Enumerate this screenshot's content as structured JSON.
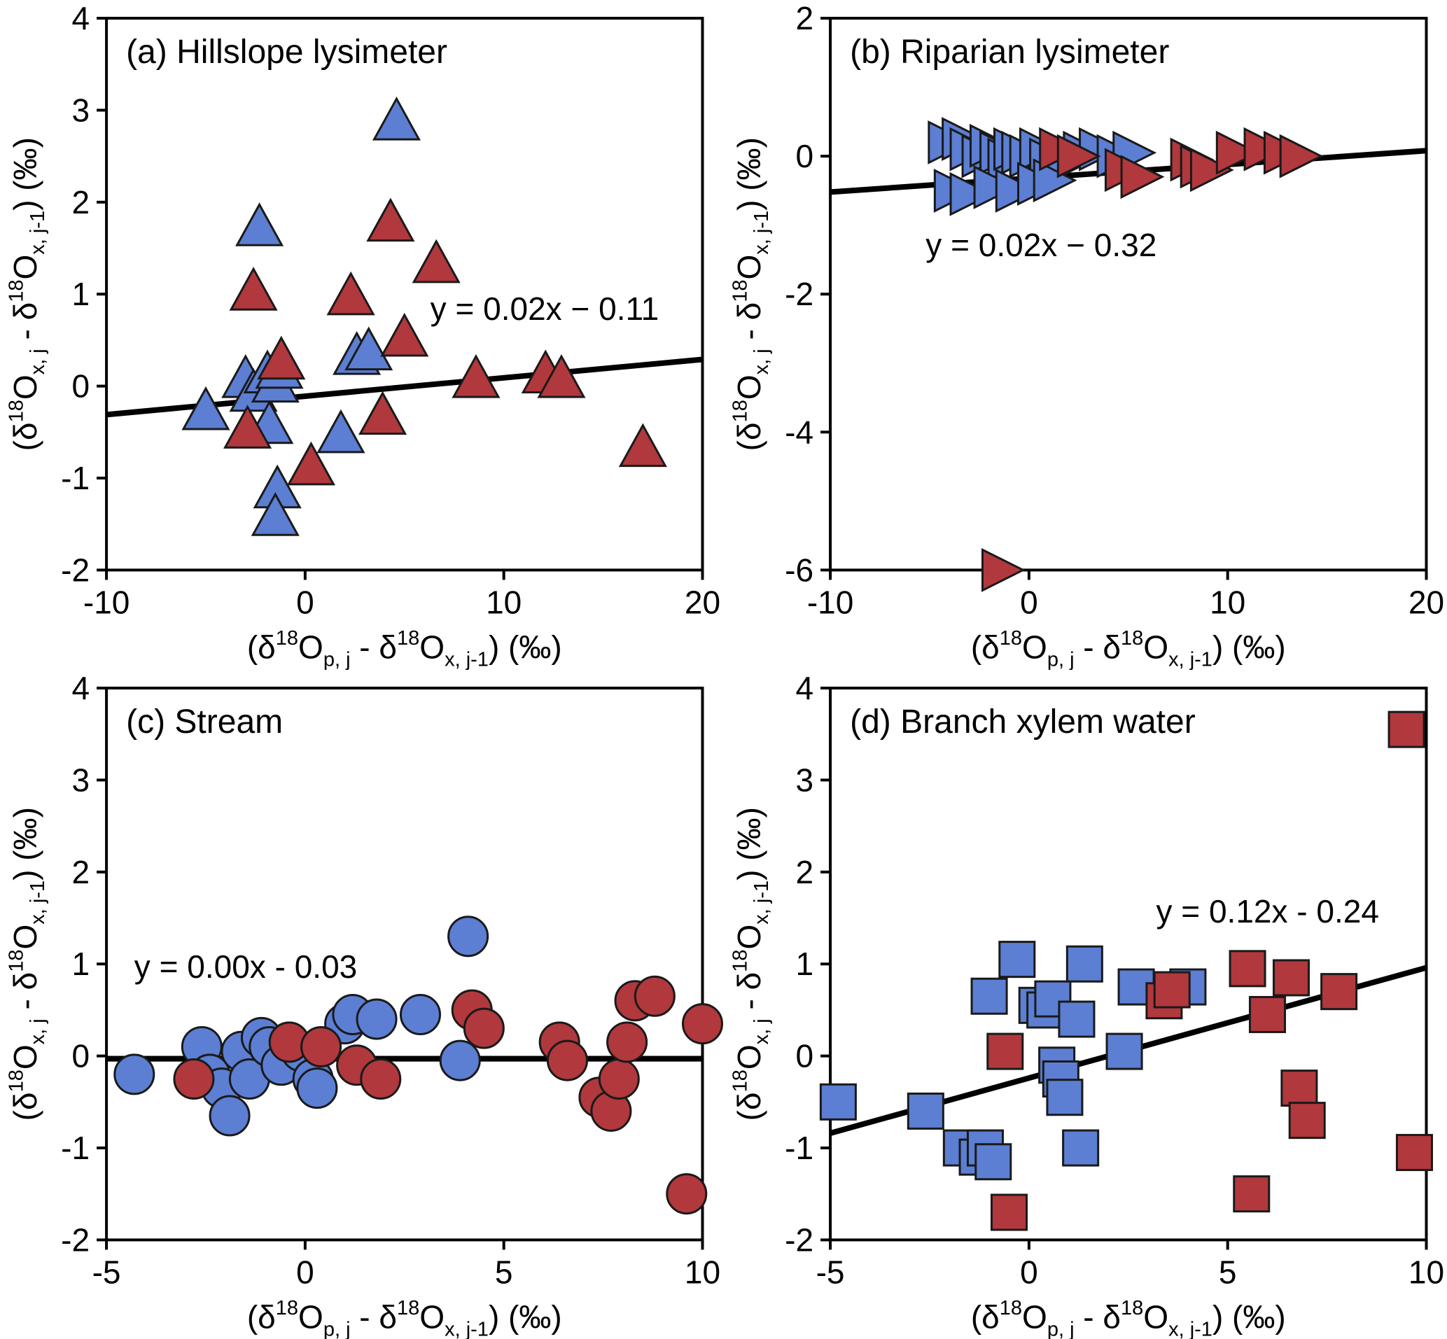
{
  "figure": {
    "background": "#ffffff",
    "marker_colors": {
      "blue": "#5c7fd3",
      "red": "#b1383d"
    },
    "edge_color": "#1a1a1a",
    "fit_line_color": "#000000",
    "xlabel": "(δ^{18}O_{p, j} - δ^{18}O_{x, j-1}) (‰)",
    "ylabel": "(δ^{18}O_{x, j} - δ^{18}O_{x, j-1}) (‰)",
    "grid": false,
    "legend": "none"
  },
  "chart_data": [
    {
      "id": "a",
      "type": "scatter",
      "title": "(a) Hillslope lysimeter",
      "marker": "triangle-up",
      "xlim": [
        -10,
        20
      ],
      "ylim": [
        -2,
        4
      ],
      "xticks": [
        -10,
        0,
        10,
        20
      ],
      "yticks": [
        -2,
        -1,
        0,
        1,
        2,
        3,
        4
      ],
      "equation": "y = 0.02x − 0.11",
      "equation_pos": [
        6.3,
        0.72
      ],
      "fit": {
        "slope": 0.02,
        "intercept": -0.11
      },
      "series": [
        {
          "name": "hillslope-blue",
          "color": "blue",
          "points": [
            [
              4.6,
              2.85
            ],
            [
              -2.3,
              1.7
            ],
            [
              2.6,
              0.3
            ],
            [
              3.2,
              0.35
            ],
            [
              -3.0,
              0.05
            ],
            [
              -2.6,
              -0.1
            ],
            [
              -1.9,
              0.1
            ],
            [
              -1.5,
              0.0
            ],
            [
              -1.3,
              0.15
            ],
            [
              -5.0,
              -0.3
            ],
            [
              -1.8,
              -0.45
            ],
            [
              1.8,
              -0.55
            ],
            [
              -1.4,
              -1.15
            ],
            [
              -1.5,
              -1.45
            ]
          ]
        },
        {
          "name": "hillslope-red",
          "color": "red",
          "points": [
            [
              4.3,
              1.75
            ],
            [
              6.6,
              1.3
            ],
            [
              -2.6,
              1.0
            ],
            [
              2.3,
              0.95
            ],
            [
              5.0,
              0.5
            ],
            [
              -1.2,
              0.25
            ],
            [
              8.6,
              0.05
            ],
            [
              12.1,
              0.1
            ],
            [
              12.9,
              0.05
            ],
            [
              3.9,
              -0.35
            ],
            [
              -2.9,
              -0.5
            ],
            [
              0.3,
              -0.9
            ],
            [
              17.0,
              -0.7
            ]
          ]
        }
      ]
    },
    {
      "id": "b",
      "type": "scatter",
      "title": "(b) Riparian lysimeter",
      "marker": "triangle-right",
      "xlim": [
        -10,
        20
      ],
      "ylim": [
        -6,
        2
      ],
      "xticks": [
        -10,
        0,
        10,
        20
      ],
      "yticks": [
        -6,
        -4,
        -2,
        0,
        2
      ],
      "equation": "y = 0.02x − 0.32",
      "equation_pos": [
        -5.2,
        -1.45
      ],
      "fit": {
        "slope": 0.02,
        "intercept": -0.32
      },
      "series": [
        {
          "name": "riparian-blue",
          "color": "blue",
          "points": [
            [
              -4.3,
              0.2
            ],
            [
              -3.6,
              0.25
            ],
            [
              -3.2,
              0.1
            ],
            [
              -2.6,
              0.0
            ],
            [
              -2.2,
              0.15
            ],
            [
              -1.7,
              0.05
            ],
            [
              -1.3,
              -0.05
            ],
            [
              -1.0,
              0.1
            ],
            [
              -0.6,
              0.05
            ],
            [
              -0.2,
              0.0
            ],
            [
              0.3,
              0.1
            ],
            [
              0.8,
              -0.05
            ],
            [
              1.6,
              -0.1
            ],
            [
              2.5,
              0.05
            ],
            [
              3.3,
              0.1
            ],
            [
              4.2,
              0.0
            ],
            [
              5.0,
              0.05
            ],
            [
              -4.0,
              -0.5
            ],
            [
              -3.2,
              -0.55
            ],
            [
              -2.0,
              -0.45
            ],
            [
              -0.9,
              -0.5
            ],
            [
              0.2,
              -0.4
            ],
            [
              1.0,
              -0.35
            ]
          ]
        },
        {
          "name": "riparian-red",
          "color": "red",
          "points": [
            [
              1.3,
              0.1
            ],
            [
              2.2,
              0.0
            ],
            [
              4.6,
              -0.2
            ],
            [
              5.4,
              -0.3
            ],
            [
              7.9,
              -0.05
            ],
            [
              8.4,
              -0.15
            ],
            [
              8.9,
              -0.2
            ],
            [
              10.2,
              0.05
            ],
            [
              11.6,
              0.1
            ],
            [
              12.6,
              0.05
            ],
            [
              13.4,
              0.0
            ],
            [
              -1.6,
              -6.0
            ]
          ]
        }
      ]
    },
    {
      "id": "c",
      "type": "scatter",
      "title": "(c) Stream",
      "marker": "circle",
      "xlim": [
        -5,
        10
      ],
      "ylim": [
        -2,
        4
      ],
      "xticks": [
        -5,
        0,
        5,
        10
      ],
      "yticks": [
        -2,
        -1,
        0,
        1,
        2,
        3,
        4
      ],
      "equation": "y = 0.00x - 0.03",
      "equation_pos": [
        -4.3,
        0.85
      ],
      "fit": {
        "slope": 0.0,
        "intercept": -0.03
      },
      "series": [
        {
          "name": "stream-blue",
          "color": "blue",
          "points": [
            [
              -4.3,
              -0.2
            ],
            [
              -2.6,
              0.1
            ],
            [
              -2.4,
              -0.2
            ],
            [
              -2.1,
              -0.35
            ],
            [
              -1.9,
              -0.65
            ],
            [
              -1.6,
              0.05
            ],
            [
              -1.4,
              -0.25
            ],
            [
              -1.1,
              0.2
            ],
            [
              -0.9,
              0.1
            ],
            [
              -0.6,
              -0.1
            ],
            [
              -0.1,
              0.05
            ],
            [
              0.2,
              -0.25
            ],
            [
              0.3,
              -0.35
            ],
            [
              1.0,
              0.35
            ],
            [
              1.2,
              0.45
            ],
            [
              1.8,
              0.4
            ],
            [
              2.9,
              0.45
            ],
            [
              4.1,
              1.3
            ],
            [
              3.9,
              -0.05
            ]
          ]
        },
        {
          "name": "stream-red",
          "color": "red",
          "points": [
            [
              -2.8,
              -0.25
            ],
            [
              -0.4,
              0.15
            ],
            [
              0.4,
              0.1
            ],
            [
              1.3,
              -0.1
            ],
            [
              1.9,
              -0.25
            ],
            [
              4.2,
              0.5
            ],
            [
              4.5,
              0.3
            ],
            [
              6.4,
              0.15
            ],
            [
              6.6,
              -0.05
            ],
            [
              7.4,
              -0.45
            ],
            [
              7.7,
              -0.6
            ],
            [
              7.9,
              -0.25
            ],
            [
              8.1,
              0.15
            ],
            [
              8.3,
              0.6
            ],
            [
              8.8,
              0.65
            ],
            [
              10.0,
              0.35
            ],
            [
              9.6,
              -1.5
            ]
          ]
        }
      ]
    },
    {
      "id": "d",
      "type": "scatter",
      "title": "(d) Branch xylem water",
      "marker": "square",
      "xlim": [
        -5,
        10
      ],
      "ylim": [
        -2,
        4
      ],
      "xticks": [
        -5,
        0,
        5,
        10
      ],
      "yticks": [
        -2,
        -1,
        0,
        1,
        2,
        3,
        4
      ],
      "equation": "y = 0.12x - 0.24",
      "equation_pos": [
        3.2,
        1.45
      ],
      "fit": {
        "slope": 0.12,
        "intercept": -0.24
      },
      "series": [
        {
          "name": "xylem-blue",
          "color": "blue",
          "points": [
            [
              -4.8,
              -0.5
            ],
            [
              -2.6,
              -0.6
            ],
            [
              -1.7,
              -1.0
            ],
            [
              -1.3,
              -1.1
            ],
            [
              -1.1,
              -1.0
            ],
            [
              -0.9,
              -1.15
            ],
            [
              -1.0,
              0.65
            ],
            [
              -0.3,
              1.05
            ],
            [
              0.2,
              0.55
            ],
            [
              0.4,
              0.5
            ],
            [
              0.6,
              0.62
            ],
            [
              0.7,
              -0.1
            ],
            [
              0.8,
              -0.25
            ],
            [
              0.9,
              -0.45
            ],
            [
              1.2,
              0.4
            ],
            [
              1.4,
              1.0
            ],
            [
              1.3,
              -1.0
            ],
            [
              2.4,
              0.05
            ],
            [
              2.7,
              0.75
            ],
            [
              4.0,
              0.75
            ]
          ]
        },
        {
          "name": "xylem-red",
          "color": "red",
          "points": [
            [
              -0.6,
              0.05
            ],
            [
              -0.5,
              -1.7
            ],
            [
              3.4,
              0.6
            ],
            [
              3.6,
              0.72
            ],
            [
              5.5,
              0.95
            ],
            [
              6.0,
              0.45
            ],
            [
              6.6,
              0.85
            ],
            [
              5.6,
              -1.5
            ],
            [
              6.8,
              -0.35
            ],
            [
              7.0,
              -0.7
            ],
            [
              7.8,
              0.7
            ],
            [
              9.5,
              3.55
            ],
            [
              9.7,
              -1.05
            ]
          ]
        }
      ]
    }
  ]
}
